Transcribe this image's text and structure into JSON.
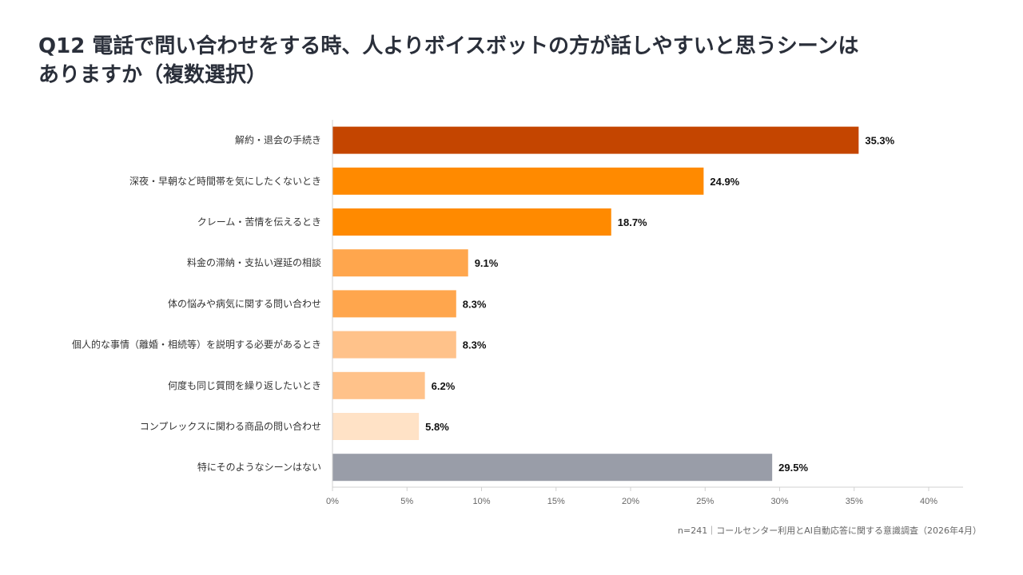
{
  "title_line1": "Q12 電話で問い合わせをする時、人よりボイスボットの方が話しやすいと思うシーンは",
  "title_line2": "ありますか（複数選択）",
  "footnote": "n=241｜コールセンター利用とAI自動応答に関する意識調査（2026年4月）",
  "chart_data": {
    "type": "bar",
    "orientation": "horizontal",
    "categories": [
      "解約・退会の手続き",
      "深夜・早朝など時間帯を気にしたくないとき",
      "クレーム・苦情を伝えるとき",
      "料金の滞納・支払い遅延の相談",
      "体の悩みや病気に関する問い合わせ",
      "個人的な事情（離婚・相続等）を説明する必要があるとき",
      "何度も同じ質問を繰り返したいとき",
      "コンプレックスに関わる商品の問い合わせ",
      "特にそのようなシーンはない"
    ],
    "values": [
      35.3,
      24.9,
      18.7,
      9.1,
      8.3,
      8.3,
      6.2,
      5.8,
      29.5
    ],
    "value_labels": [
      "35.3%",
      "24.9%",
      "18.7%",
      "9.1%",
      "8.3%",
      "8.3%",
      "6.2%",
      "5.8%",
      "29.5%"
    ],
    "colors": [
      "#c44500",
      "#ff8a00",
      "#ff8a00",
      "#ffa64d",
      "#ffa64d",
      "#ffc28a",
      "#ffc28a",
      "#ffe2c6",
      "#999da8"
    ],
    "xlim": [
      0,
      40
    ],
    "xticks": [
      0,
      5,
      10,
      15,
      20,
      25,
      30,
      35,
      40
    ],
    "xtick_labels": [
      "0%",
      "5%",
      "10%",
      "15%",
      "20%",
      "25%",
      "30%",
      "35%",
      "40%"
    ],
    "grid": false,
    "legend": "none"
  }
}
